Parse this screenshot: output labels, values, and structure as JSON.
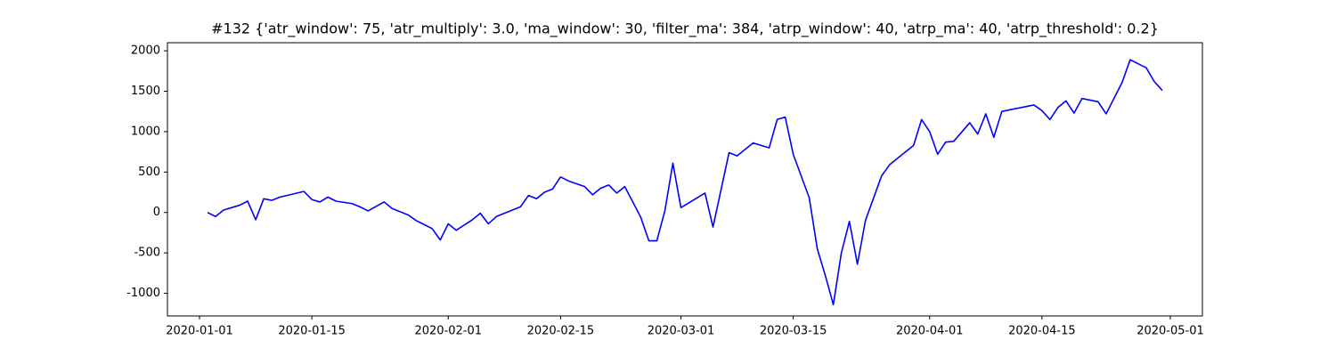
{
  "chart_data": {
    "type": "line",
    "title": "#132 {'atr_window': 75, 'atr_multiply': 3.0, 'ma_window': 30, 'filter_ma': 384, 'atrp_window': 40, 'atrp_ma': 40, 'atrp_threshold': 0.2}",
    "x": [
      "2020-01-02",
      "2020-01-03",
      "2020-01-04",
      "2020-01-06",
      "2020-01-07",
      "2020-01-08",
      "2020-01-09",
      "2020-01-10",
      "2020-01-11",
      "2020-01-14",
      "2020-01-15",
      "2020-01-16",
      "2020-01-17",
      "2020-01-18",
      "2020-01-20",
      "2020-01-21",
      "2020-01-22",
      "2020-01-24",
      "2020-01-25",
      "2020-01-27",
      "2020-01-28",
      "2020-01-29",
      "2020-01-30",
      "2020-01-31",
      "2020-02-01",
      "2020-02-02",
      "2020-02-04",
      "2020-02-05",
      "2020-02-06",
      "2020-02-07",
      "2020-02-10",
      "2020-02-11",
      "2020-02-12",
      "2020-02-13",
      "2020-02-14",
      "2020-02-15",
      "2020-02-16",
      "2020-02-18",
      "2020-02-19",
      "2020-02-20",
      "2020-02-21",
      "2020-02-22",
      "2020-02-23",
      "2020-02-24",
      "2020-02-25",
      "2020-02-26",
      "2020-02-27",
      "2020-02-28",
      "2020-02-29",
      "2020-03-01",
      "2020-03-04",
      "2020-03-05",
      "2020-03-07",
      "2020-03-08",
      "2020-03-10",
      "2020-03-12",
      "2020-03-13",
      "2020-03-14",
      "2020-03-15",
      "2020-03-17",
      "2020-03-18",
      "2020-03-19",
      "2020-03-20",
      "2020-03-21",
      "2020-03-22",
      "2020-03-23",
      "2020-03-24",
      "2020-03-26",
      "2020-03-27",
      "2020-03-30",
      "2020-03-31",
      "2020-04-01",
      "2020-04-02",
      "2020-04-03",
      "2020-04-04",
      "2020-04-06",
      "2020-04-07",
      "2020-04-08",
      "2020-04-09",
      "2020-04-10",
      "2020-04-14",
      "2020-04-15",
      "2020-04-16",
      "2020-04-17",
      "2020-04-18",
      "2020-04-19",
      "2020-04-20",
      "2020-04-22",
      "2020-04-23",
      "2020-04-25",
      "2020-04-26",
      "2020-04-28",
      "2020-04-29",
      "2020-04-30"
    ],
    "series": [
      {
        "color": "#0000ff",
        "values": [
          0,
          -50,
          30,
          90,
          140,
          -90,
          170,
          150,
          190,
          260,
          160,
          130,
          190,
          140,
          110,
          70,
          20,
          130,
          50,
          -30,
          -100,
          -150,
          -200,
          -340,
          -140,
          -220,
          -90,
          -10,
          -140,
          -50,
          70,
          210,
          170,
          250,
          290,
          440,
          390,
          320,
          220,
          300,
          340,
          240,
          320,
          130,
          -60,
          -350,
          -350,
          20,
          610,
          60,
          240,
          -180,
          740,
          700,
          860,
          800,
          1150,
          1180,
          720,
          180,
          -450,
          -780,
          -1140,
          -500,
          -110,
          -640,
          -100,
          450,
          590,
          830,
          1150,
          1000,
          720,
          870,
          880,
          1110,
          970,
          1220,
          930,
          1250,
          1330,
          1260,
          1150,
          1300,
          1380,
          1230,
          1410,
          1370,
          1220,
          1610,
          1890,
          1790,
          1620,
          1510
        ]
      }
    ],
    "xlim": [
      "2019-12-28",
      "2020-05-05"
    ],
    "xticks": [
      "2020-01-01",
      "2020-01-15",
      "2020-02-01",
      "2020-02-15",
      "2020-03-01",
      "2020-03-15",
      "2020-04-01",
      "2020-04-15",
      "2020-05-01"
    ],
    "ylim": [
      -1280,
      2100
    ],
    "yticks": [
      -1000,
      -500,
      0,
      500,
      1000,
      1500,
      2000
    ]
  }
}
